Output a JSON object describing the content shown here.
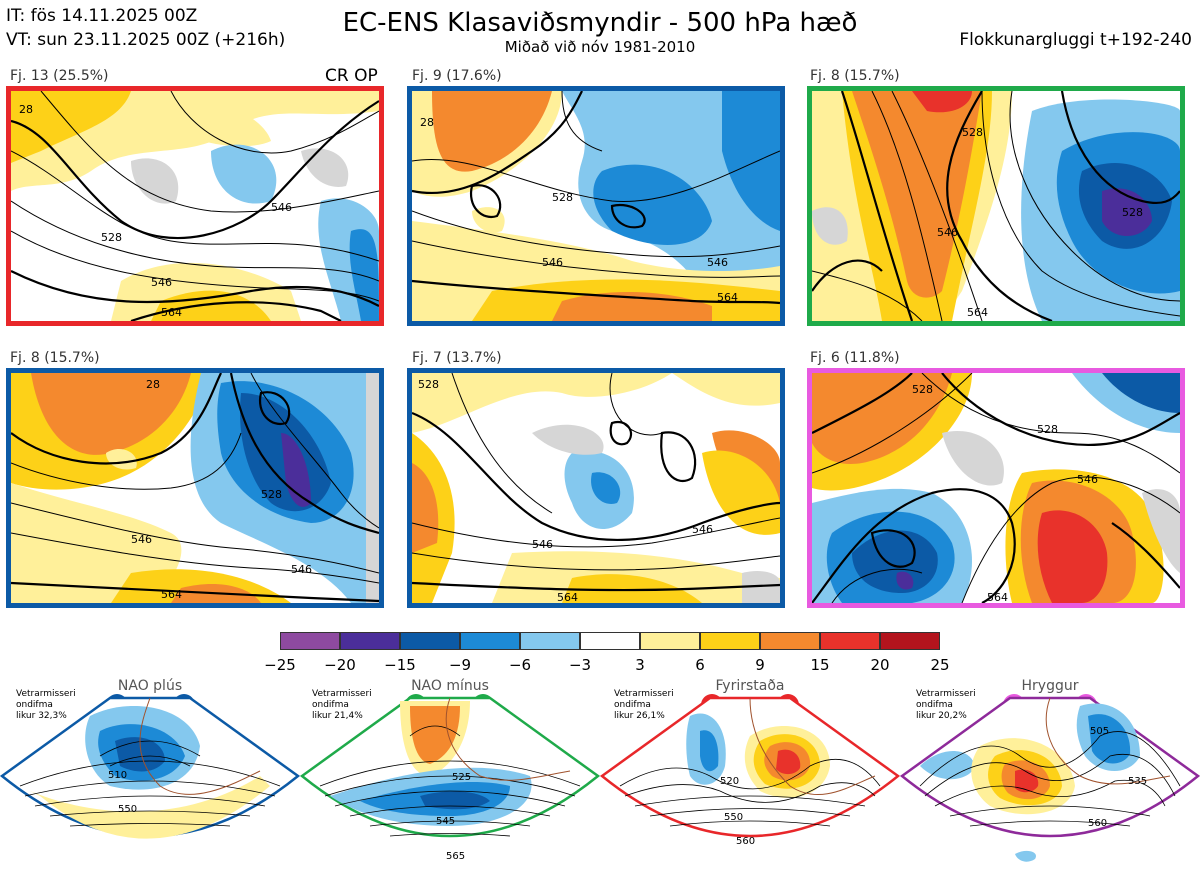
{
  "header": {
    "it_line": "IT: fös 14.11.2025 00Z",
    "vt_line": "VT: sun 23.11.2025 00Z  (+216h)",
    "title": "EC-ENS Klasaviðsmyndir - 500 hPa hæð",
    "subtitle": "Miðað við nóv 1981-2010",
    "window": "Flokkunargluggi t+192-240"
  },
  "colors": {
    "nao_plus": "#0c5aa6",
    "nao_minus": "#1faa4a",
    "blocking": "#e8272a",
    "ridge": "#e85ae0",
    "red_border": "#e8272a"
  },
  "clusters": [
    {
      "label": "Fj. 13 (25.5%)",
      "regime": "red",
      "contours": [
        "28",
        "528",
        "546",
        "564",
        "546"
      ],
      "extra": "CR OP"
    },
    {
      "label": "Fj. 9 (17.6%)",
      "regime": "nao_plus",
      "contours": [
        "28",
        "528",
        "546",
        "564",
        "546"
      ]
    },
    {
      "label": "Fj. 8 (15.7%)",
      "regime": "nao_minus",
      "contours": [
        "528",
        "546",
        "528",
        "564"
      ]
    },
    {
      "label": "Fj. 8 (15.7%)",
      "regime": "nao_plus",
      "contours": [
        "28",
        "528",
        "546",
        "564",
        "546"
      ]
    },
    {
      "label": "Fj. 7 (13.7%)",
      "regime": "nao_plus",
      "contours": [
        "528",
        "546",
        "564",
        "546"
      ]
    },
    {
      "label": "Fj. 6 (11.8%)",
      "regime": "ridge",
      "contours": [
        "528",
        "546",
        "564",
        "528"
      ]
    }
  ],
  "colorbar": {
    "colors": [
      "#8e4aa0",
      "#4b2e9a",
      "#0c5aa6",
      "#1d8ad6",
      "#84c8ee",
      "#ffffff",
      "#fff09a",
      "#fdd118",
      "#f4892e",
      "#e8322b",
      "#b3141d"
    ],
    "ticks": [
      "−25",
      "−20",
      "−15",
      "−9",
      "−6",
      "−3",
      "3",
      "6",
      "9",
      "15",
      "20",
      "25"
    ]
  },
  "regimes": [
    {
      "name": "NAO plús",
      "note": [
        "Vetrarmisseri",
        "ondifma",
        "likur 32,3%"
      ],
      "color": "#0c5aa6",
      "contours": [
        "510",
        "550"
      ]
    },
    {
      "name": "NAO mínus",
      "note": [
        "Vetrarmisseri",
        "ondifma",
        "likur 21,4%"
      ],
      "color": "#1faa4a",
      "contours": [
        "525",
        "545",
        "565"
      ]
    },
    {
      "name": "Fyrirstaða",
      "note": [
        "Vetrarmisseri",
        "ondifma",
        "likur 26,1%"
      ],
      "color": "#e8272a",
      "contours": [
        "520",
        "550",
        "560"
      ]
    },
    {
      "name": "Hryggur",
      "note": [
        "Vetrarmisseri",
        "ondifma",
        "likur 20,2%"
      ],
      "color": "#8e2a9a",
      "dot_color": "#e85ae0",
      "contours": [
        "505",
        "535",
        "560"
      ]
    }
  ]
}
